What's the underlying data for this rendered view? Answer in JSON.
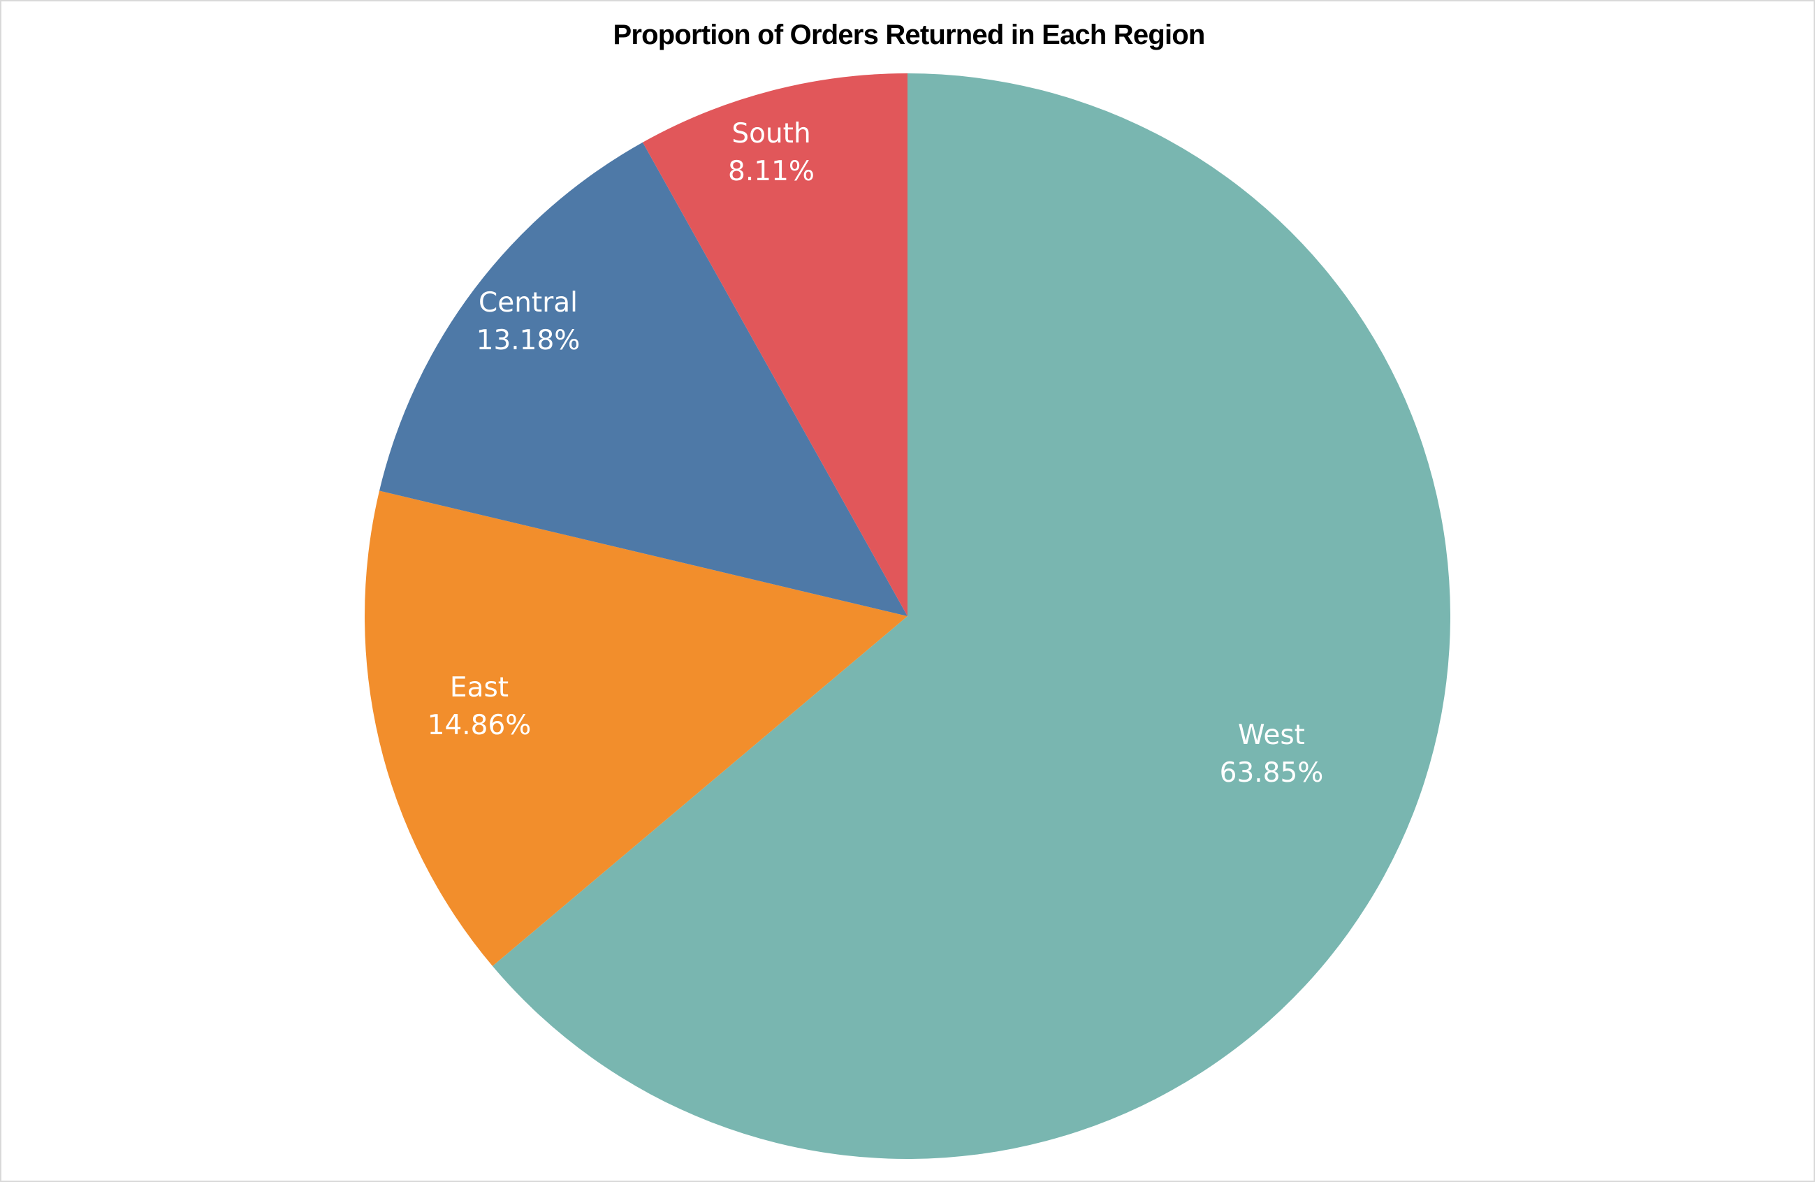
{
  "chart_data": {
    "type": "pie",
    "title": "Proportion of Orders Returned in Each Region",
    "start_angle_deg": 0,
    "direction": "clockwise",
    "slices": [
      {
        "label": "West",
        "value": 63.85,
        "display": "63.85%",
        "color": "#79b6b0"
      },
      {
        "label": "East",
        "value": 14.86,
        "display": "14.86%",
        "color": "#f28e2c"
      },
      {
        "label": "Central",
        "value": 13.18,
        "display": "13.18%",
        "color": "#4e79a7"
      },
      {
        "label": "South",
        "value": 8.11,
        "display": "8.11%",
        "color": "#e1575a"
      }
    ]
  }
}
